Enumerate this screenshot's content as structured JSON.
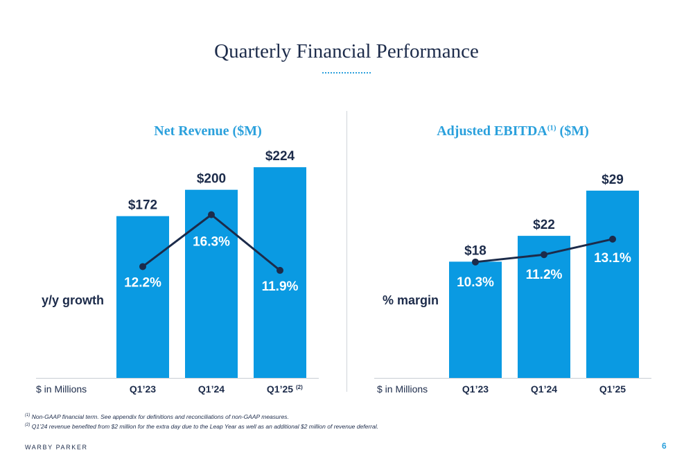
{
  "page": {
    "title": "Quarterly Financial Performance",
    "brand": "WARBY PARKER",
    "page_number": "6",
    "footnotes": [
      {
        "marker": "(1)",
        "text": "Non-GAAP financial term. See appendix for definitions and reconciliations of non-GAAP measures."
      },
      {
        "marker": "(2)",
        "text": "Q1’24 revenue benefited from $2 million for the extra day due to the Leap Year as well as an additional $2 million of revenue deferral."
      }
    ]
  },
  "colors": {
    "bar": "#0a9ae2",
    "line": "#1c2b4a",
    "title_accent": "#2aa0dc",
    "text_dark": "#1c2b4a",
    "label_light": "#ffffff"
  },
  "chart_data": [
    {
      "type": "bar",
      "title": "Net Revenue ($M)",
      "title_sup": "",
      "title_suffix": "",
      "unit_label": "$ in Millions",
      "categories": [
        "Q1’23",
        "Q1’24",
        "Q1’25"
      ],
      "category_sups": [
        "",
        "",
        "(2)"
      ],
      "values": [
        172,
        200,
        224
      ],
      "value_labels": [
        "$172",
        "$200",
        "$224"
      ],
      "ylim": [
        0,
        230
      ],
      "line_series": {
        "name": "y/y growth",
        "values": [
          12.2,
          16.3,
          11.9
        ],
        "labels": [
          "12.2%",
          "16.3%",
          "11.9%"
        ],
        "ylim": [
          3.4,
          20.5
        ]
      },
      "grid": false
    },
    {
      "type": "bar",
      "title": "Adjusted EBITDA",
      "title_sup": "(1)",
      "title_suffix": " ($M)",
      "unit_label": "$ in Millions",
      "categories": [
        "Q1’23",
        "Q1’24",
        "Q1’25"
      ],
      "category_sups": [
        "",
        "",
        ""
      ],
      "values": [
        18,
        22,
        29
      ],
      "value_labels": [
        "$18",
        "$22",
        "$29"
      ],
      "ylim": [
        0,
        33.5
      ],
      "line_series": {
        "name": "% margin",
        "values": [
          10.3,
          11.2,
          13.1
        ],
        "labels": [
          "10.3%",
          "11.2%",
          "13.1%"
        ],
        "ylim": [
          -3.9,
          22.6
        ]
      },
      "grid": false
    }
  ]
}
